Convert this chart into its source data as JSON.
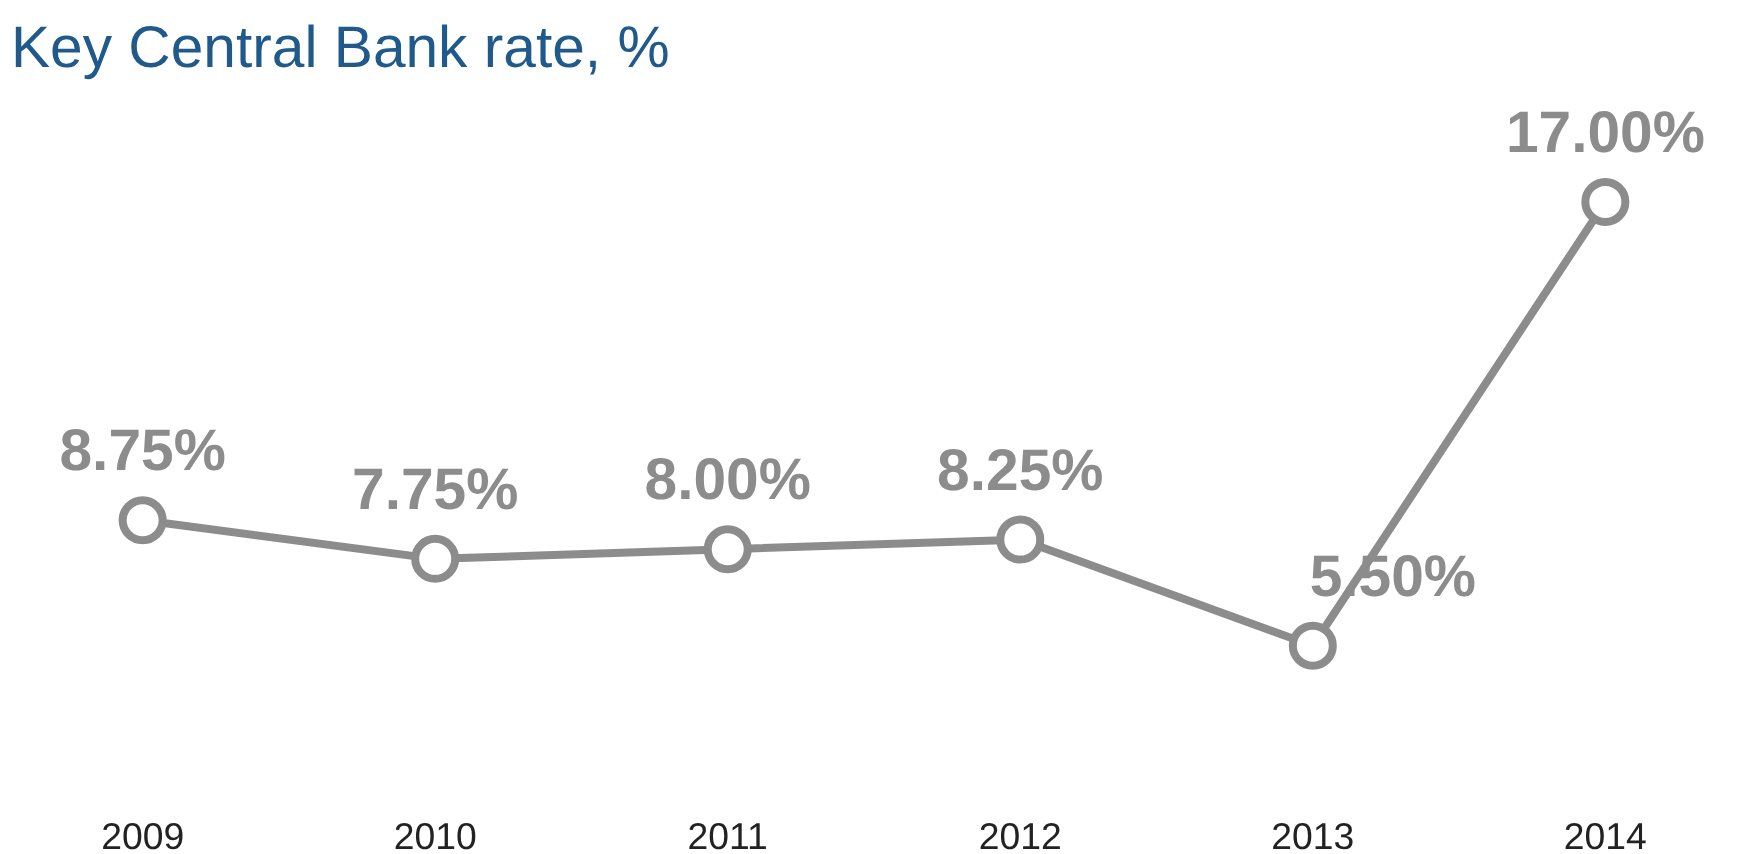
{
  "chart_data": {
    "type": "line",
    "title": "Key Central Bank rate, %",
    "categories": [
      "2009",
      "2010",
      "2011",
      "2012",
      "2013",
      "2014"
    ],
    "series": [
      {
        "color": "#8c8c8c",
        "values": [
          8.75,
          7.75,
          8.0,
          8.25,
          5.5,
          17.0
        ],
        "value_labels": [
          "8.75%",
          "7.75%",
          "8.00%",
          "8.25%",
          "5.50%",
          "17.00%"
        ]
      }
    ],
    "marker": "circle",
    "line_style": "solid",
    "grid": false
  }
}
